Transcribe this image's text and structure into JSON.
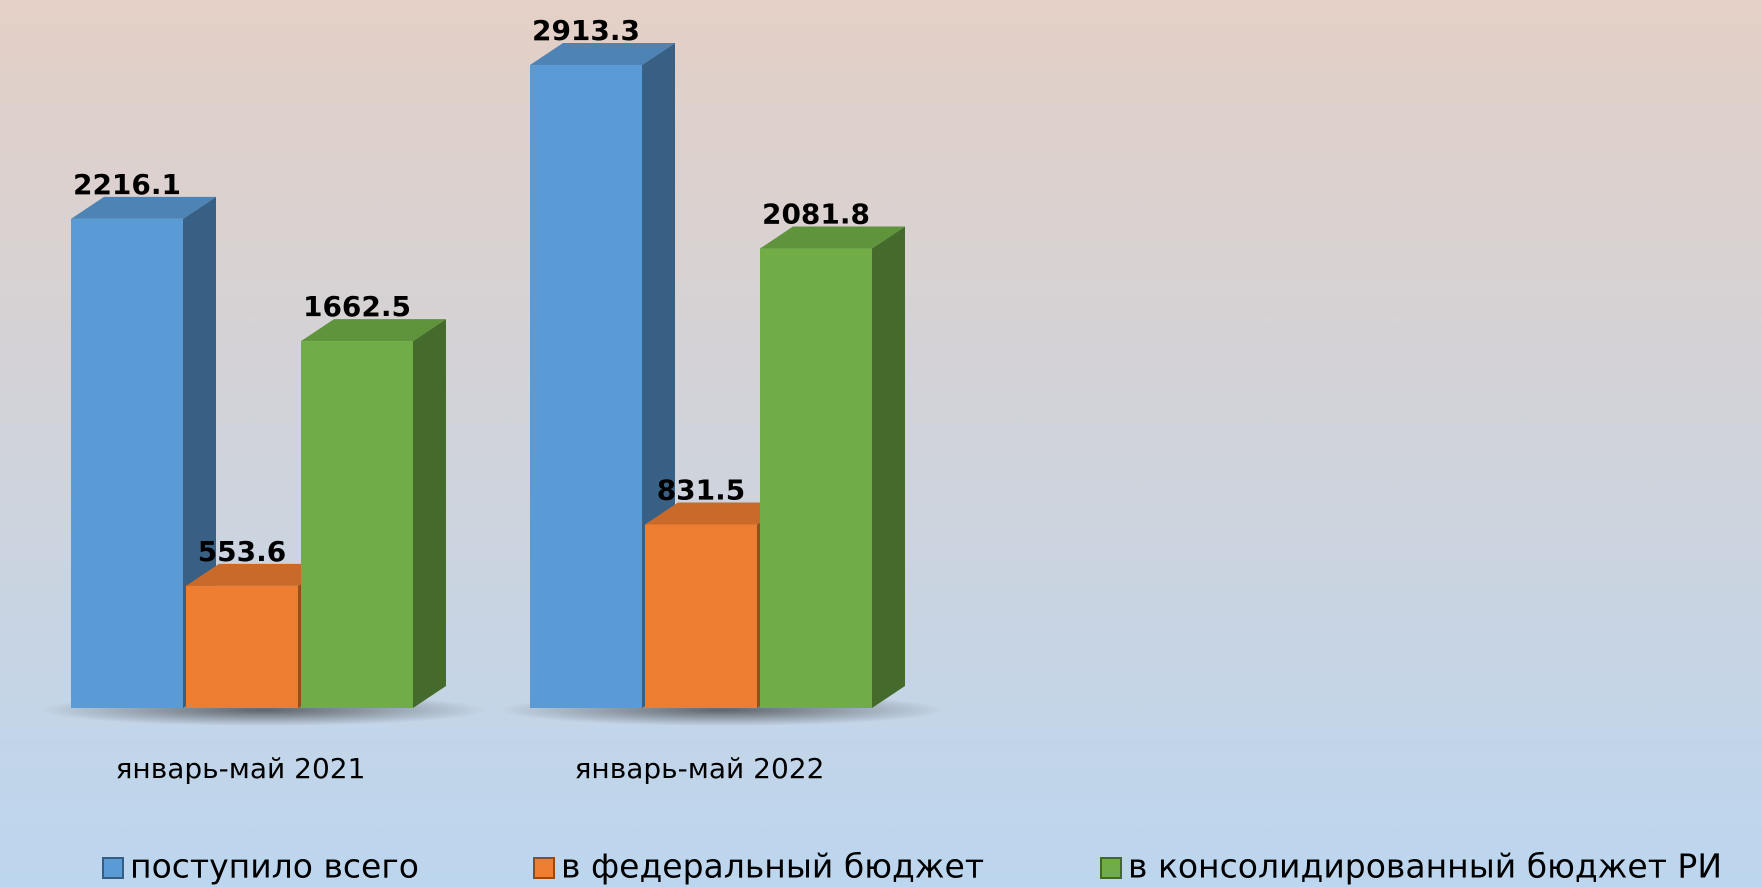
{
  "chart_data": {
    "type": "bar3d",
    "categories": [
      "январь-май 2021",
      "январь-май 2022"
    ],
    "series": [
      {
        "name": "поступило всего",
        "color": "#5b9bd5",
        "values": [
          2216.1,
          2913.3
        ]
      },
      {
        "name": "в федеральный бюджет",
        "color": "#ed7d31",
        "values": [
          553.6,
          831.5
        ]
      },
      {
        "name": "в консолидированный бюджет РИ",
        "color": "#70ad47",
        "values": [
          1662.5,
          2081.8
        ]
      }
    ],
    "legend": "bottom"
  }
}
